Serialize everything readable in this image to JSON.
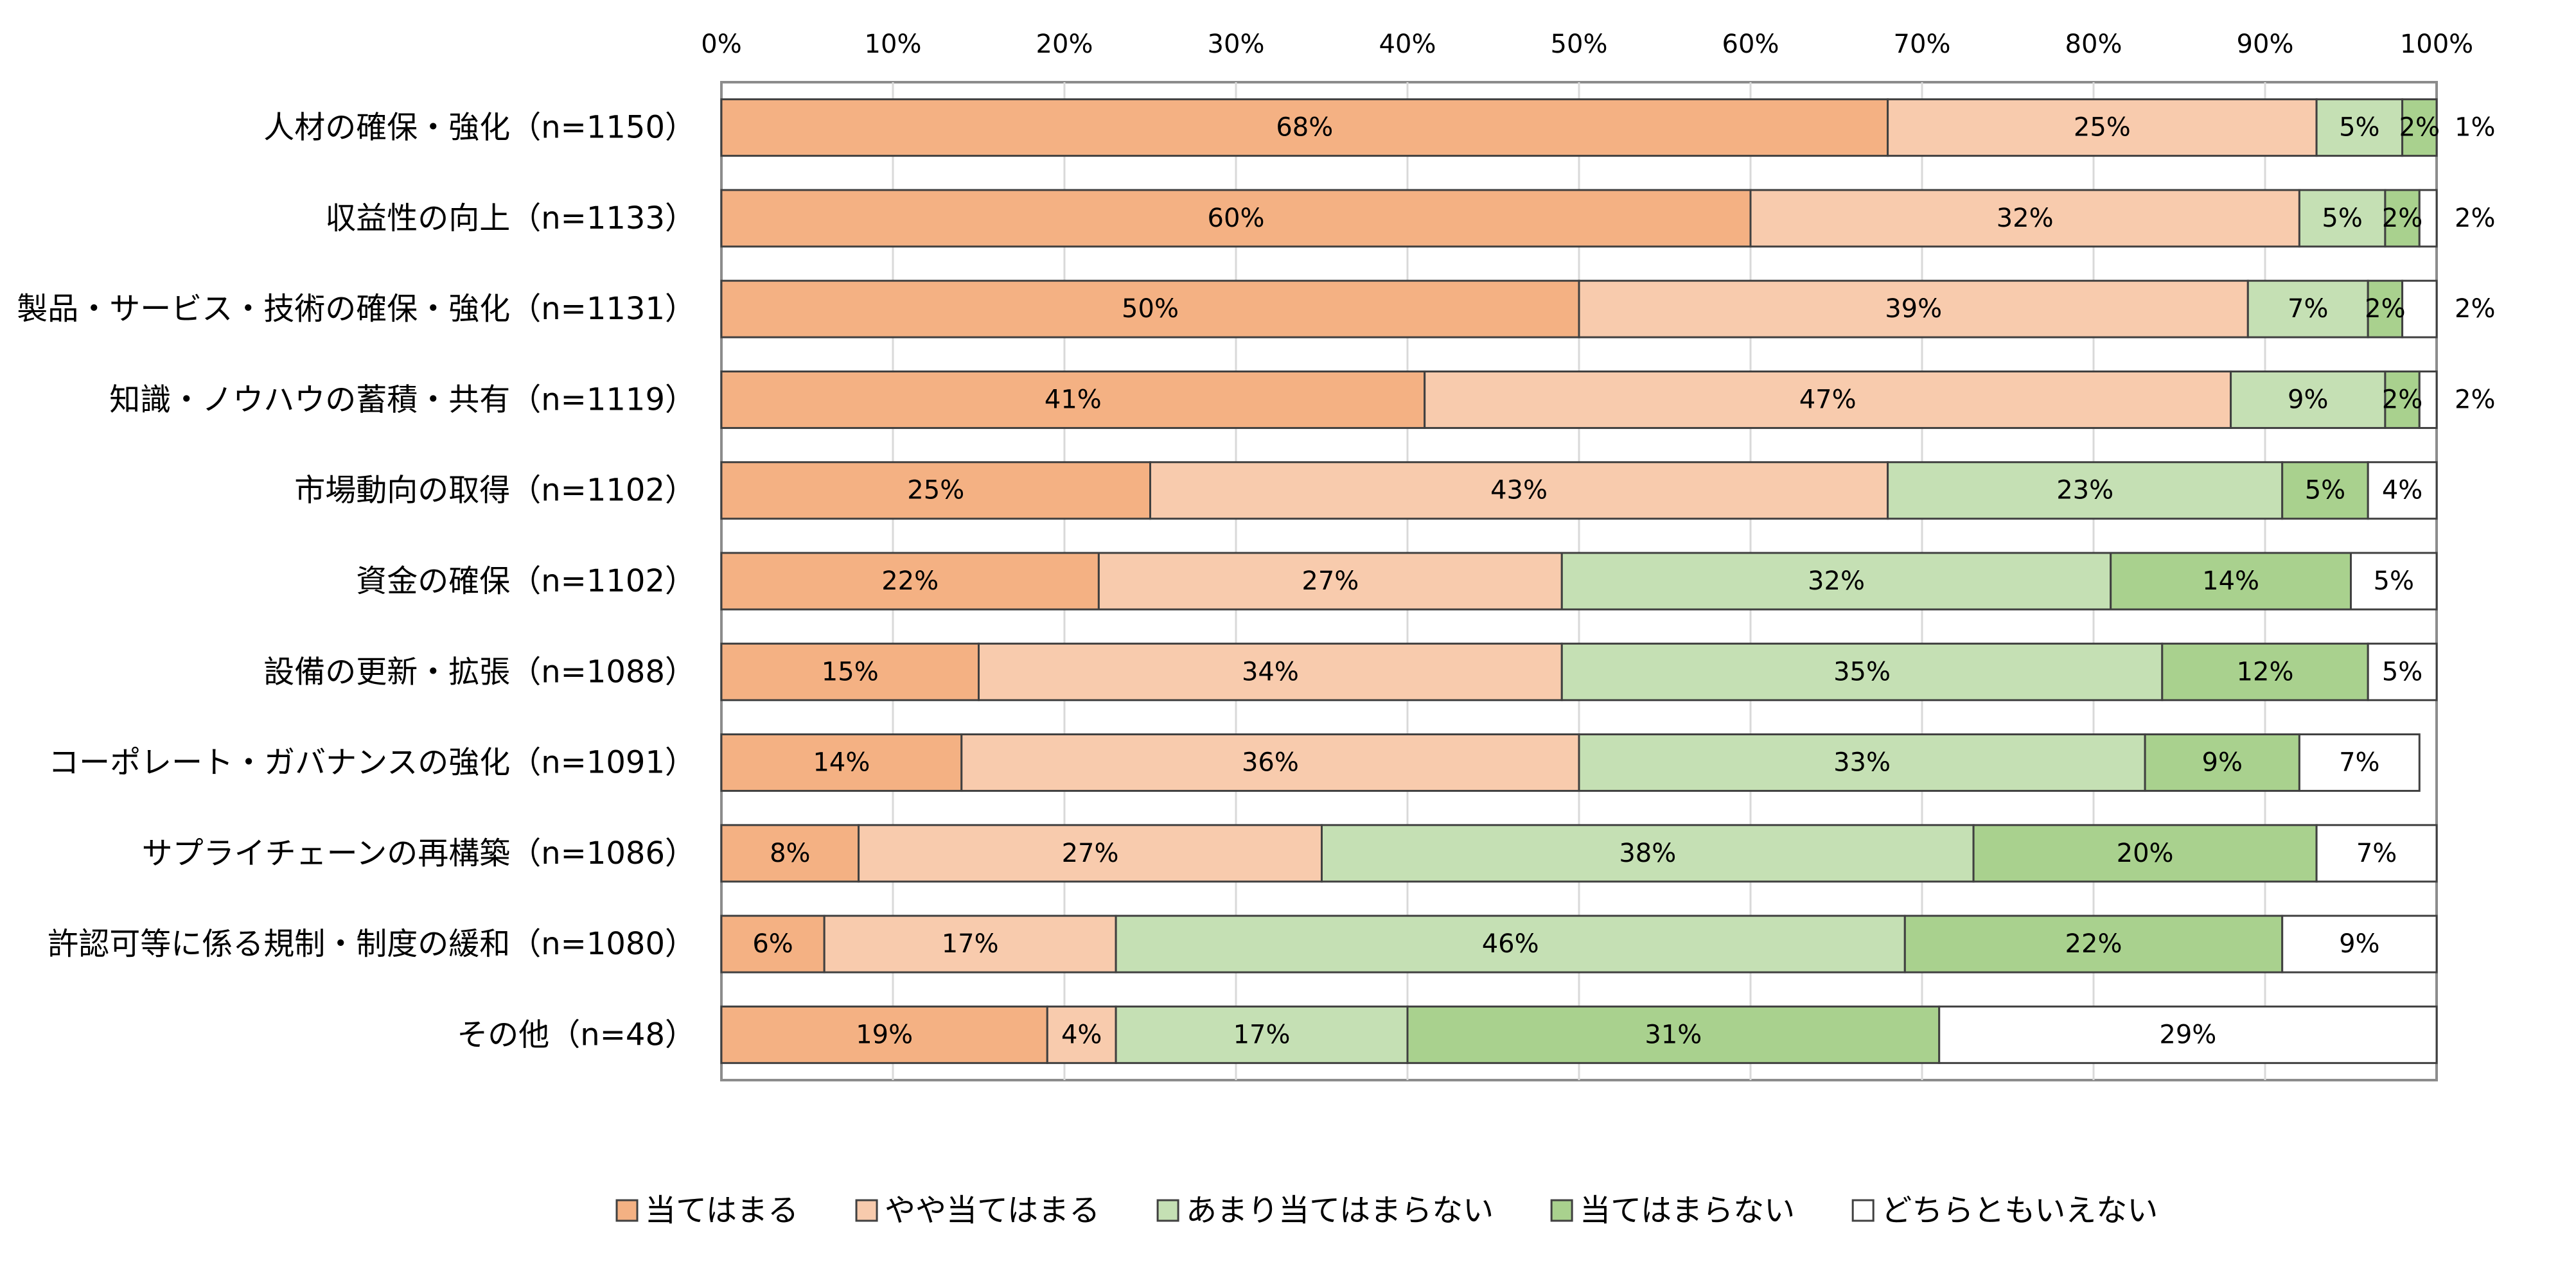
{
  "chart_data": {
    "type": "bar",
    "orientation": "horizontal",
    "stacked": true,
    "percent_stacked": true,
    "x_ticks": [
      "0%",
      "10%",
      "20%",
      "30%",
      "40%",
      "50%",
      "60%",
      "70%",
      "80%",
      "90%",
      "100%"
    ],
    "xlim": [
      0,
      100
    ],
    "grid": true,
    "legend_position": "bottom",
    "categories": [
      "人材の確保・強化（n=1150）",
      "収益性の向上（n=1133）",
      "製品・サービス・技術の確保・強化（n=1131）",
      "知識・ノウハウの蓄積・共有（n=1119）",
      "市場動向の取得（n=1102）",
      "資金の確保（n=1102）",
      "設備の更新・拡張（n=1088）",
      "コーポレート・ガバナンスの強化（n=1091）",
      "サプライチェーンの再構築（n=1086）",
      "許認可等に係る規制・制度の緩和（n=1080）",
      "その他（n=48）"
    ],
    "series": [
      {
        "name": "当てはまる",
        "color": "#f4b183",
        "values": [
          68,
          60,
          50,
          41,
          25,
          22,
          15,
          14,
          8,
          6,
          19
        ]
      },
      {
        "name": "やや当てはまる",
        "color": "#f8cbad",
        "values": [
          25,
          32,
          39,
          47,
          43,
          27,
          34,
          36,
          27,
          17,
          4
        ]
      },
      {
        "name": "あまり当てはまらない",
        "color": "#c5e0b4",
        "values": [
          5,
          5,
          7,
          9,
          23,
          32,
          35,
          33,
          38,
          46,
          17
        ]
      },
      {
        "name": "当てはまらない",
        "color": "#a9d18e",
        "values": [
          2,
          2,
          2,
          2,
          5,
          14,
          12,
          9,
          20,
          22,
          31
        ]
      },
      {
        "name": "どちらともいえない",
        "color": "#ffffff",
        "values": [
          1,
          2,
          2,
          2,
          4,
          5,
          5,
          7,
          7,
          9,
          29
        ]
      }
    ]
  }
}
